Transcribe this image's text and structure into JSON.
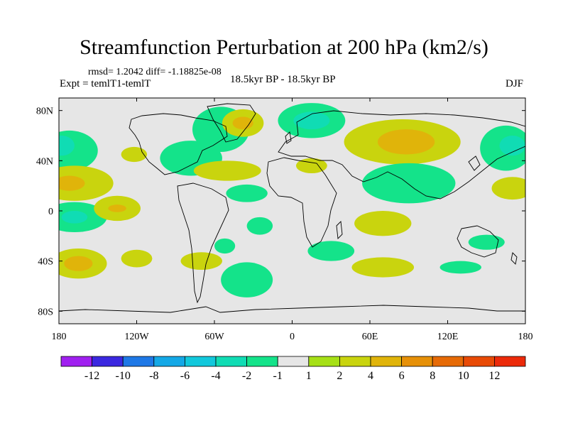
{
  "chart_data": {
    "type": "heatmap",
    "title": "Streamfunction Perturbation at 200 hPa (km2/s)",
    "stats_line": "rmsd= 1.2042 diff= -1.18825e-08",
    "experiment": "Expt = temlT1-temlT",
    "period": "18.5kyr BP - 18.5kyr BP",
    "season": "DJF",
    "x_ticks": [
      {
        "value": -180,
        "label": "180"
      },
      {
        "value": -120,
        "label": "120W"
      },
      {
        "value": -60,
        "label": "60W"
      },
      {
        "value": 0,
        "label": "0"
      },
      {
        "value": 60,
        "label": "60E"
      },
      {
        "value": 120,
        "label": "120E"
      },
      {
        "value": 180,
        "label": "180"
      }
    ],
    "y_ticks": [
      {
        "value": 80,
        "label": "80N"
      },
      {
        "value": 40,
        "label": "40N"
      },
      {
        "value": 0,
        "label": "0"
      },
      {
        "value": -40,
        "label": "40S"
      },
      {
        "value": -80,
        "label": "80S"
      }
    ],
    "xlim": [
      -180,
      180
    ],
    "ylim": [
      -90,
      90
    ],
    "colorbar": {
      "levels": [
        -12,
        -10,
        -8,
        -6,
        -4,
        -2,
        -1,
        1,
        2,
        4,
        6,
        8,
        10,
        12
      ],
      "labels": [
        "-12",
        "-10",
        "-8",
        "-6",
        "-4",
        "-2",
        "-1",
        "1",
        "2",
        "4",
        "6",
        "8",
        "10",
        "12"
      ],
      "colors": [
        "#a020f0",
        "#3b28e0",
        "#1e78e6",
        "#14a8e6",
        "#12c8dc",
        "#10dcb4",
        "#14e38a",
        "#e6e6e6",
        "#a6e016",
        "#c9d40e",
        "#e0b40a",
        "#e69008",
        "#e66a06",
        "#e84a06",
        "#ec2a0a"
      ]
    },
    "anomalies": [
      {
        "lon": -172,
        "lat": 48,
        "rlon": 22,
        "rlat": 16,
        "value": -2
      },
      {
        "lon": -178,
        "lat": 52,
        "rlon": 10,
        "rlat": 8,
        "value": -4
      },
      {
        "lon": -168,
        "lat": 22,
        "rlon": 30,
        "rlat": 14,
        "value": 2
      },
      {
        "lon": -172,
        "lat": 22,
        "rlon": 12,
        "rlat": 6,
        "value": 4
      },
      {
        "lon": -168,
        "lat": -5,
        "rlon": 25,
        "rlat": 12,
        "value": -2
      },
      {
        "lon": -168,
        "lat": -5,
        "rlon": 10,
        "rlat": 5,
        "value": -4
      },
      {
        "lon": -135,
        "lat": 2,
        "rlon": 18,
        "rlat": 10,
        "value": 2
      },
      {
        "lon": -135,
        "lat": 2,
        "rlon": 7,
        "rlat": 3,
        "value": 4
      },
      {
        "lon": -122,
        "lat": 45,
        "rlon": 10,
        "rlat": 6,
        "value": 2
      },
      {
        "lon": -165,
        "lat": -42,
        "rlon": 22,
        "rlat": 12,
        "value": 2
      },
      {
        "lon": -165,
        "lat": -42,
        "rlon": 11,
        "rlat": 6,
        "value": 4
      },
      {
        "lon": -120,
        "lat": -38,
        "rlon": 12,
        "rlat": 7,
        "value": 2
      },
      {
        "lon": -78,
        "lat": 42,
        "rlon": 24,
        "rlat": 14,
        "value": -2
      },
      {
        "lon": -55,
        "lat": 65,
        "rlon": 22,
        "rlat": 18,
        "value": -2
      },
      {
        "lon": -38,
        "lat": 70,
        "rlon": 16,
        "rlat": 11,
        "value": 2
      },
      {
        "lon": -38,
        "lat": 70,
        "rlon": 8,
        "rlat": 5,
        "value": 4
      },
      {
        "lon": -50,
        "lat": 32,
        "rlon": 26,
        "rlat": 8,
        "value": 2
      },
      {
        "lon": -35,
        "lat": 14,
        "rlon": 16,
        "rlat": 7,
        "value": -2
      },
      {
        "lon": -25,
        "lat": -12,
        "rlon": 10,
        "rlat": 7,
        "value": -2
      },
      {
        "lon": -70,
        "lat": -40,
        "rlon": 16,
        "rlat": 7,
        "value": 2
      },
      {
        "lon": -52,
        "lat": -28,
        "rlon": 8,
        "rlat": 6,
        "value": -2
      },
      {
        "lon": -35,
        "lat": -55,
        "rlon": 20,
        "rlat": 14,
        "value": -2
      },
      {
        "lon": 15,
        "lat": 72,
        "rlon": 26,
        "rlat": 14,
        "value": -2
      },
      {
        "lon": 15,
        "lat": 72,
        "rlon": 14,
        "rlat": 7,
        "value": -4
      },
      {
        "lon": 85,
        "lat": 55,
        "rlon": 45,
        "rlat": 18,
        "value": 2
      },
      {
        "lon": 88,
        "lat": 55,
        "rlon": 22,
        "rlat": 10,
        "value": 4
      },
      {
        "lon": 15,
        "lat": 36,
        "rlon": 12,
        "rlat": 6,
        "value": 2
      },
      {
        "lon": 90,
        "lat": 22,
        "rlon": 36,
        "rlat": 16,
        "value": -2
      },
      {
        "lon": 70,
        "lat": -10,
        "rlon": 22,
        "rlat": 10,
        "value": 2
      },
      {
        "lon": 30,
        "lat": -32,
        "rlon": 18,
        "rlat": 8,
        "value": -2
      },
      {
        "lon": 70,
        "lat": -45,
        "rlon": 24,
        "rlat": 8,
        "value": 2
      },
      {
        "lon": 130,
        "lat": -45,
        "rlon": 16,
        "rlat": 5,
        "value": -2
      },
      {
        "lon": 150,
        "lat": -25,
        "rlon": 14,
        "rlat": 6,
        "value": -2
      },
      {
        "lon": 165,
        "lat": 50,
        "rlon": 20,
        "rlat": 18,
        "value": -2
      },
      {
        "lon": 170,
        "lat": 52,
        "rlon": 10,
        "rlat": 8,
        "value": -4
      },
      {
        "lon": 170,
        "lat": 18,
        "rlon": 16,
        "rlat": 9,
        "value": 2
      }
    ]
  }
}
